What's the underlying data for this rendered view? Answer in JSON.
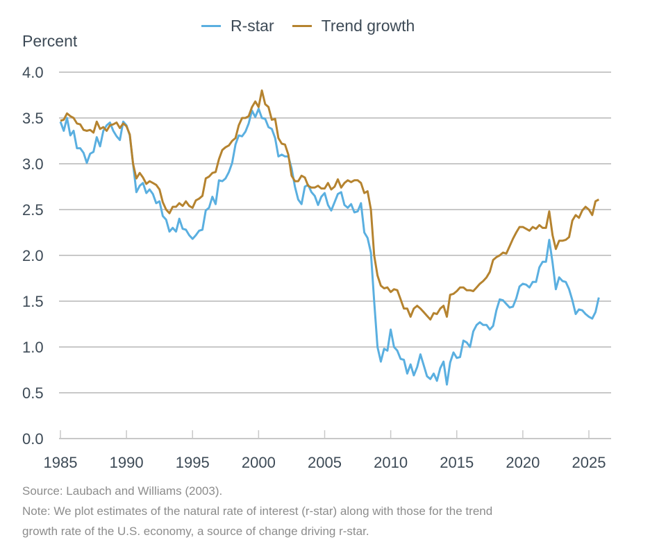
{
  "chart_data": {
    "type": "line",
    "title": "",
    "xlabel": "",
    "ylabel": "Percent",
    "xlim": [
      1985,
      2026
    ],
    "ylim": [
      0,
      4
    ],
    "grid": true,
    "legend_position": "top-center",
    "x_ticks": [
      "1985",
      "1990",
      "1995",
      "2000",
      "2005",
      "2010",
      "2015",
      "2020",
      "2025"
    ],
    "y_ticks": [
      "0.0",
      "0.5",
      "1.0",
      "1.5",
      "2.0",
      "2.5",
      "3.0",
      "3.5",
      "4.0"
    ],
    "x_start": 1985.0,
    "x_step": 0.25,
    "series": [
      {
        "name": "R-star",
        "color": "#5aafe0",
        "values": [
          3.46,
          3.36,
          3.5,
          3.31,
          3.36,
          3.17,
          3.17,
          3.12,
          3.01,
          3.11,
          3.13,
          3.29,
          3.19,
          3.36,
          3.42,
          3.45,
          3.36,
          3.3,
          3.26,
          3.46,
          3.42,
          3.31,
          3.0,
          2.69,
          2.76,
          2.79,
          2.68,
          2.72,
          2.67,
          2.57,
          2.59,
          2.43,
          2.39,
          2.26,
          2.3,
          2.26,
          2.4,
          2.29,
          2.28,
          2.22,
          2.18,
          2.22,
          2.27,
          2.28,
          2.49,
          2.52,
          2.64,
          2.56,
          2.82,
          2.81,
          2.84,
          2.91,
          3.01,
          3.21,
          3.31,
          3.3,
          3.35,
          3.44,
          3.58,
          3.51,
          3.6,
          3.5,
          3.49,
          3.4,
          3.38,
          3.28,
          3.08,
          3.1,
          3.08,
          3.08,
          2.95,
          2.75,
          2.61,
          2.56,
          2.75,
          2.77,
          2.69,
          2.65,
          2.55,
          2.64,
          2.68,
          2.55,
          2.49,
          2.58,
          2.67,
          2.69,
          2.55,
          2.52,
          2.56,
          2.47,
          2.48,
          2.57,
          2.25,
          2.19,
          2.03,
          1.5,
          1.0,
          0.84,
          0.98,
          0.96,
          1.19,
          1.0,
          0.96,
          0.87,
          0.86,
          0.71,
          0.81,
          0.69,
          0.78,
          0.92,
          0.8,
          0.68,
          0.65,
          0.71,
          0.63,
          0.77,
          0.84,
          0.59,
          0.83,
          0.94,
          0.88,
          0.89,
          1.07,
          1.05,
          1.0,
          1.17,
          1.24,
          1.27,
          1.24,
          1.24,
          1.19,
          1.23,
          1.4,
          1.52,
          1.51,
          1.47,
          1.43,
          1.44,
          1.53,
          1.66,
          1.69,
          1.68,
          1.65,
          1.71,
          1.71,
          1.87,
          1.93,
          1.93,
          2.17,
          1.92,
          1.63,
          1.76,
          1.72,
          1.71,
          1.63,
          1.51,
          1.36,
          1.41,
          1.4,
          1.36,
          1.33,
          1.31,
          1.38,
          1.54
        ]
      },
      {
        "name": "Trend growth",
        "color": "#b5832f",
        "values": [
          3.47,
          3.48,
          3.55,
          3.52,
          3.5,
          3.44,
          3.43,
          3.37,
          3.36,
          3.37,
          3.34,
          3.46,
          3.38,
          3.4,
          3.36,
          3.42,
          3.43,
          3.45,
          3.39,
          3.44,
          3.41,
          3.32,
          3.0,
          2.84,
          2.9,
          2.85,
          2.78,
          2.81,
          2.79,
          2.77,
          2.72,
          2.58,
          2.5,
          2.46,
          2.53,
          2.53,
          2.57,
          2.54,
          2.59,
          2.54,
          2.52,
          2.6,
          2.62,
          2.65,
          2.84,
          2.86,
          2.9,
          2.91,
          3.05,
          3.15,
          3.18,
          3.2,
          3.25,
          3.28,
          3.42,
          3.5,
          3.5,
          3.52,
          3.62,
          3.68,
          3.62,
          3.8,
          3.65,
          3.62,
          3.48,
          3.49,
          3.28,
          3.22,
          3.21,
          3.1,
          2.87,
          2.81,
          2.81,
          2.87,
          2.85,
          2.76,
          2.74,
          2.74,
          2.76,
          2.73,
          2.73,
          2.79,
          2.72,
          2.75,
          2.83,
          2.74,
          2.79,
          2.82,
          2.8,
          2.82,
          2.82,
          2.79,
          2.68,
          2.7,
          2.5,
          2.0,
          1.78,
          1.67,
          1.64,
          1.65,
          1.6,
          1.63,
          1.62,
          1.52,
          1.42,
          1.42,
          1.33,
          1.42,
          1.45,
          1.42,
          1.38,
          1.34,
          1.3,
          1.37,
          1.36,
          1.42,
          1.45,
          1.33,
          1.57,
          1.58,
          1.61,
          1.65,
          1.65,
          1.62,
          1.62,
          1.61,
          1.65,
          1.69,
          1.72,
          1.76,
          1.82,
          1.95,
          1.98,
          2.0,
          2.03,
          2.02,
          2.1,
          2.18,
          2.25,
          2.31,
          2.31,
          2.29,
          2.27,
          2.31,
          2.29,
          2.33,
          2.3,
          2.3,
          2.48,
          2.22,
          2.07,
          2.16,
          2.16,
          2.17,
          2.2,
          2.38,
          2.44,
          2.41,
          2.49,
          2.53,
          2.5,
          2.44,
          2.59,
          2.61
        ]
      }
    ]
  },
  "legend": {
    "items": [
      {
        "label": "R-star",
        "color": "#5aafe0"
      },
      {
        "label": "Trend growth",
        "color": "#b5832f"
      }
    ]
  },
  "axis": {
    "y_title": "Percent"
  },
  "footnotes": {
    "source": "Source: Laubach and Williams (2003).",
    "note_line1": "Note: We plot estimates of the natural rate of interest (r-star) along with those for the trend",
    "note_line2": "growth rate of the U.S. economy, a source of change driving r-star."
  }
}
